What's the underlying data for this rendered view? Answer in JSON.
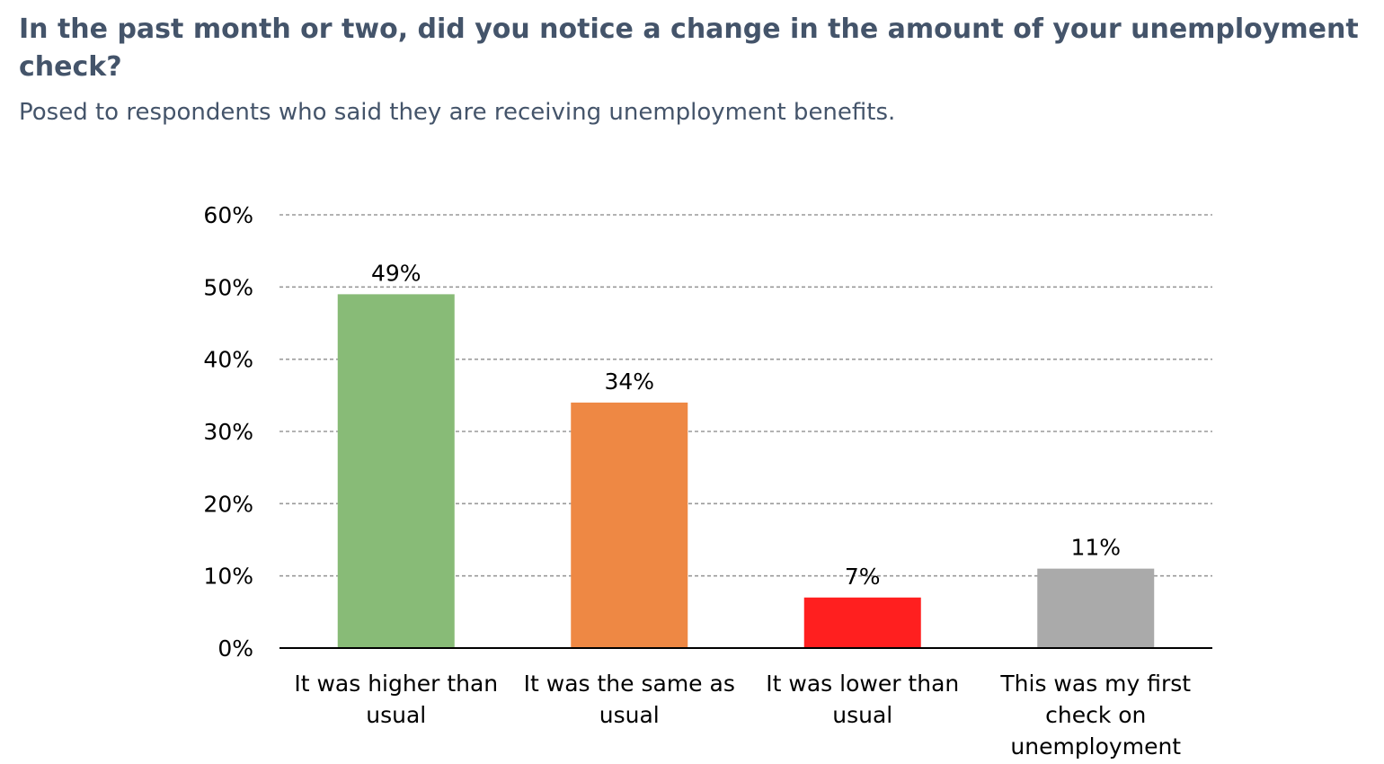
{
  "title": "In the past month or two, did you notice a change in the amount of your unemployment check?",
  "subtitle": "Posed to respondents who said they are receiving unemployment benefits.",
  "chart_data": {
    "type": "bar",
    "categories": [
      [
        "It was higher than",
        "usual"
      ],
      [
        "It was the same as",
        "usual"
      ],
      [
        "It was lower than",
        "usual"
      ],
      [
        "This was my first",
        "check on",
        "unemployment"
      ]
    ],
    "values": [
      49,
      34,
      7,
      11
    ],
    "value_labels": [
      "49%",
      "34%",
      "7%",
      "11%"
    ],
    "colors": [
      "#88bb77",
      "#ee8844",
      "#ff1f1f",
      "#aaaaaa"
    ],
    "ylim": [
      0,
      60
    ],
    "yticks": [
      "0%",
      "10%",
      "20%",
      "30%",
      "40%",
      "50%",
      "60%"
    ],
    "grid": true,
    "xlabel": "",
    "ylabel": ""
  }
}
